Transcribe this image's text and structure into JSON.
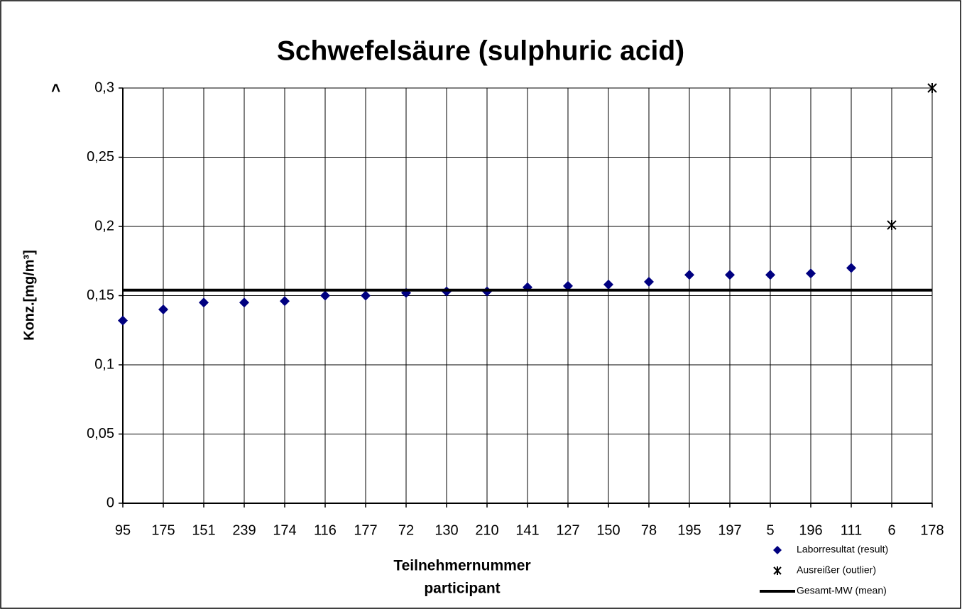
{
  "chart_data": {
    "type": "scatter",
    "title": "Schwefelsäure (sulphuric acid)",
    "y_label": "Konz.[mg/m³]",
    "x_label": [
      "Teilnehmernummer",
      "participant"
    ],
    "y_top_label": ">",
    "categories": [
      "95",
      "175",
      "151",
      "239",
      "174",
      "116",
      "177",
      "72",
      "130",
      "210",
      "141",
      "127",
      "150",
      "78",
      "195",
      "197",
      "5",
      "196",
      "111",
      "6",
      "178"
    ],
    "series": [
      {
        "name": "Laborresultat (result)",
        "color": "#000080",
        "marker": "diamond",
        "values": [
          0.132,
          0.14,
          0.145,
          0.145,
          0.146,
          0.15,
          0.15,
          0.152,
          0.153,
          0.153,
          0.156,
          0.157,
          0.158,
          0.16,
          0.165,
          0.165,
          0.165,
          0.166,
          0.17,
          null,
          null
        ]
      },
      {
        "name": "Ausreißer (outlier)",
        "color": "#000000",
        "marker": "star",
        "values": [
          null,
          null,
          null,
          null,
          null,
          null,
          null,
          null,
          null,
          null,
          null,
          null,
          null,
          null,
          null,
          null,
          null,
          null,
          null,
          0.201,
          0.3
        ]
      },
      {
        "name": "Gesamt-MW (mean)",
        "color": "#000000",
        "marker": "line",
        "values": [
          0.154,
          0.154,
          0.154,
          0.154,
          0.154,
          0.154,
          0.154,
          0.154,
          0.154,
          0.154,
          0.154,
          0.154,
          0.154,
          0.154,
          0.154,
          0.154,
          0.154,
          0.154,
          0.154,
          0.154,
          0.154
        ]
      }
    ],
    "ylim": [
      0,
      0.3
    ],
    "yticks": [
      0,
      {
        "value": 0.05,
        "label": "0,05"
      },
      {
        "value": 0.1,
        "label": "0,1"
      },
      {
        "value": 0.15,
        "label": "0,15"
      },
      {
        "value": 0.2,
        "label": "0,2"
      },
      {
        "value": 0.25,
        "label": "0,25"
      },
      {
        "value": 0.3,
        "label": "0,3"
      }
    ],
    "grid": true,
    "legend": "bottom-right"
  }
}
